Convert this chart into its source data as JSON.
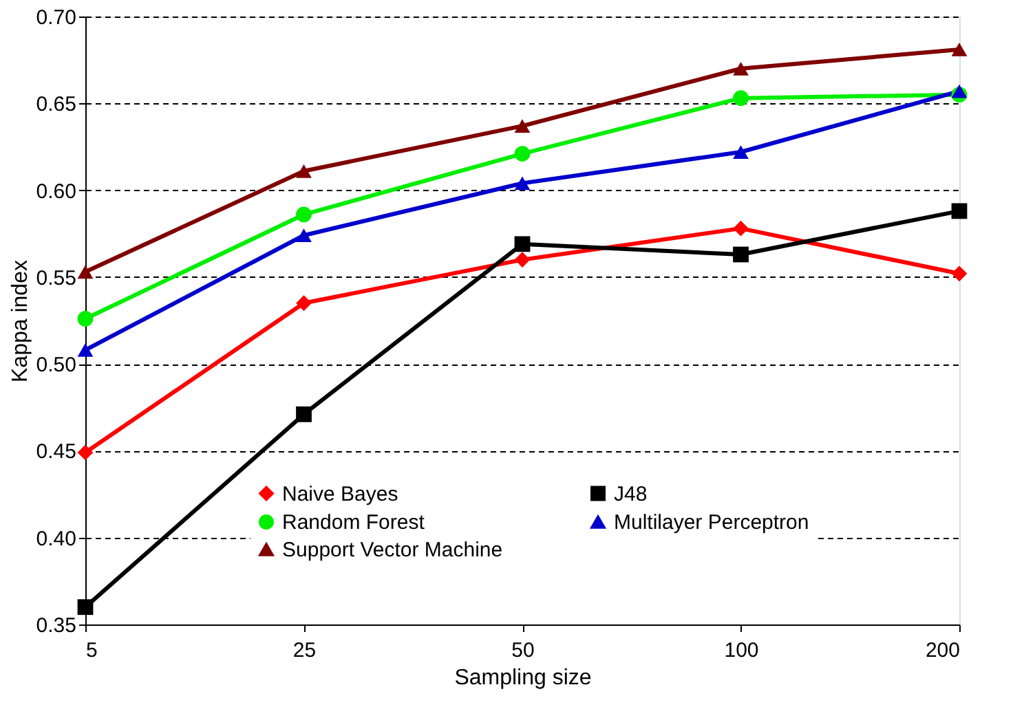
{
  "chart_data": {
    "type": "line",
    "xlabel": "Sampling size",
    "ylabel": "Kappa index",
    "categories": [
      "5",
      "25",
      "50",
      "100",
      "200"
    ],
    "series": [
      {
        "name": "Naive Bayes",
        "color": "#ff0000",
        "marker": "diamond",
        "values": [
          0.449,
          0.535,
          0.56,
          0.578,
          0.552
        ]
      },
      {
        "name": "J48",
        "color": "#000000",
        "marker": "square",
        "values": [
          0.36,
          0.471,
          0.569,
          0.563,
          0.588
        ]
      },
      {
        "name": "Random Forest",
        "color": "#00ee00",
        "marker": "circle",
        "values": [
          0.526,
          0.586,
          0.621,
          0.653,
          0.655
        ]
      },
      {
        "name": "Multilayer Perceptron",
        "color": "#0000cc",
        "marker": "triangle",
        "values": [
          0.508,
          0.574,
          0.604,
          0.622,
          0.657
        ]
      },
      {
        "name": "Support Vector Machine",
        "color": "#800000",
        "marker": "triangle",
        "values": [
          0.553,
          0.611,
          0.637,
          0.67,
          0.681
        ]
      }
    ],
    "ylim": [
      0.35,
      0.7
    ],
    "yticks": [
      0.35,
      {
        "value": 0.4,
        "label": "0.40"
      },
      0.45,
      {
        "value": 0.5,
        "label": "0.50"
      },
      0.55,
      {
        "value": 0.6,
        "label": "0.60"
      },
      0.65,
      {
        "value": 0.7,
        "label": "0.70"
      }
    ],
    "grid": "y",
    "legend": "bottom",
    "line_style": "solid"
  }
}
